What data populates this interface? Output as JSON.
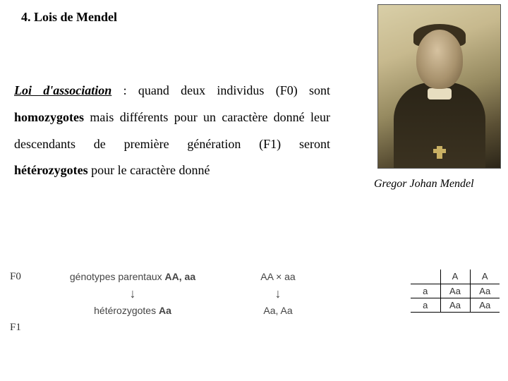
{
  "header": {
    "title": "4. Lois de Mendel"
  },
  "paragraph": {
    "term": "Loi d'association",
    "seg1": " :  quand deux individus  (F0) sont ",
    "bold1": "homozygotes",
    "seg2": " mais différents pour un caractère donné leur descendants de première génération (F1) seront ",
    "bold2": "hétérozygotes",
    "seg3": "  pour le caractère donné"
  },
  "portrait": {
    "caption": "Gregor Johan Mendel"
  },
  "diagram": {
    "gen0_label": "F0",
    "gen1_label": "F1",
    "parent_text_prefix": "génotypes parentaux ",
    "parent_genotypes": "AA, aa",
    "cross_text": "AA × aa",
    "arrow_glyph": "↓",
    "hetero_text_prefix": "hétérozygotes ",
    "hetero_genotype": "Aa",
    "offspring_text": "Aa, Aa"
  },
  "punnett": {
    "row0": [
      "",
      "A",
      "A"
    ],
    "row1": [
      "a",
      "Aa",
      "Aa"
    ],
    "row2": [
      "a",
      "Aa",
      "Aa"
    ]
  },
  "colors": {
    "text": "#000000",
    "background": "#ffffff",
    "border": "#000000",
    "diagram_text": "#444444"
  }
}
